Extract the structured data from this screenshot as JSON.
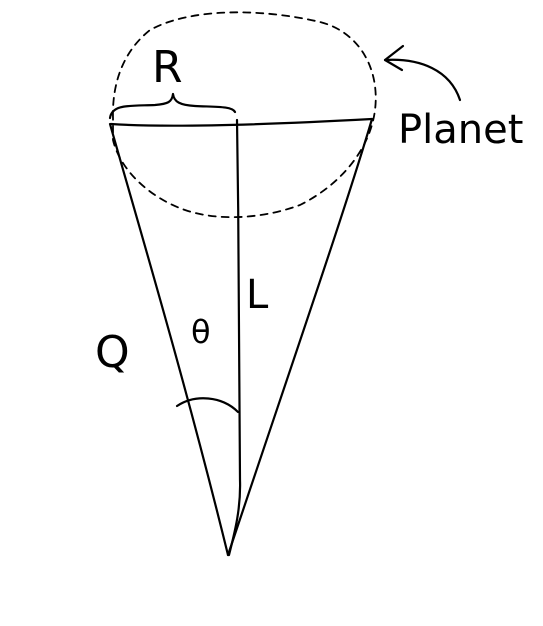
{
  "labels": {
    "radius": "R",
    "length": "L",
    "angle": "θ",
    "charge": "Q",
    "planet": "Planet"
  },
  "colors": {
    "ink": "#000000",
    "background": "#ffffff"
  }
}
